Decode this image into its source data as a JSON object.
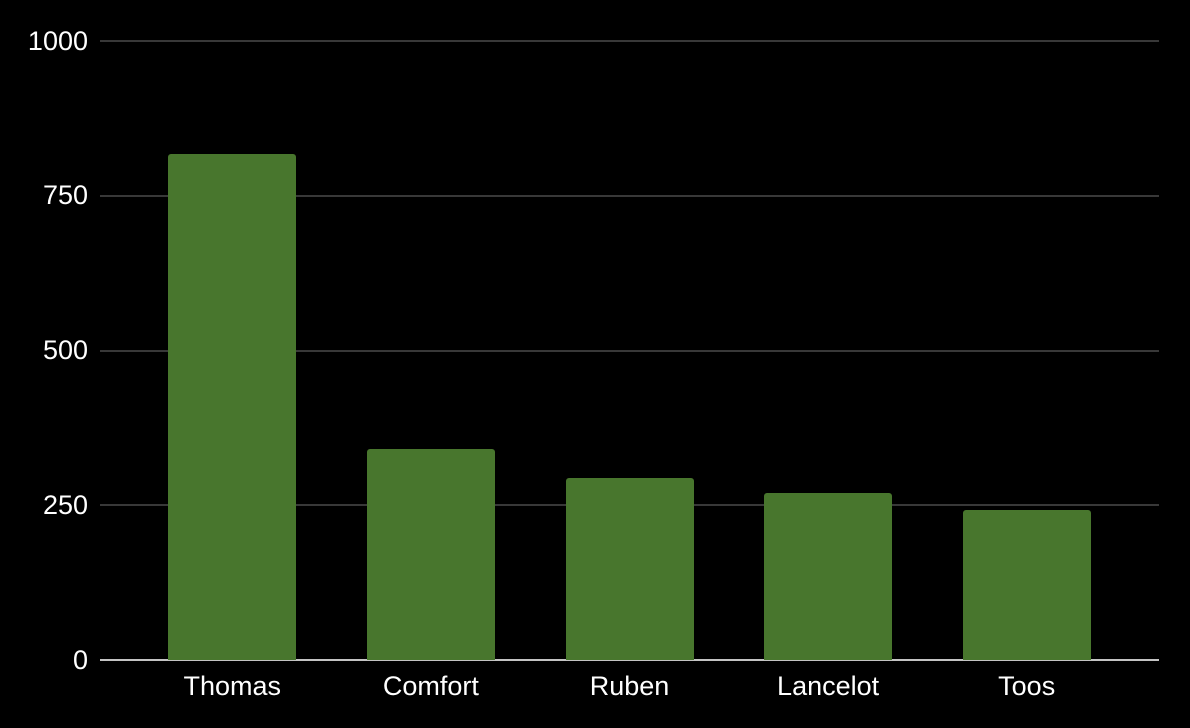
{
  "chart": {
    "background_color": "#000000",
    "bar_color": "#48762d",
    "gridline_color": "#383838",
    "baseline_color": "#c4c4c4",
    "label_color": "#ffffff"
  },
  "chart_data": {
    "type": "bar",
    "title": "",
    "xlabel": "",
    "ylabel": "",
    "categories": [
      "Thomas",
      "Comfort",
      "Ruben",
      "Lancelot",
      "Toos"
    ],
    "values": [
      818,
      341,
      294,
      270,
      242
    ],
    "ylim": [
      0,
      1000
    ],
    "yticks": [
      0,
      250,
      500,
      750,
      1000
    ],
    "grid": true,
    "legend": "none",
    "series_color": "#48762d"
  }
}
